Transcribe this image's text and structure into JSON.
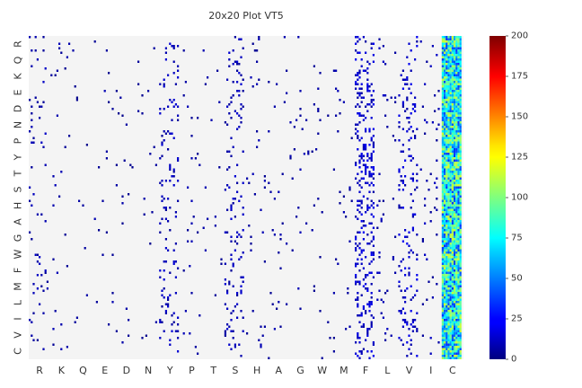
{
  "chart_data": {
    "type": "heatmap",
    "title": "20x20 Plot VT5",
    "x_labels": [
      "R",
      "K",
      "Q",
      "E",
      "D",
      "N",
      "Y",
      "P",
      "T",
      "S",
      "H",
      "A",
      "G",
      "W",
      "M",
      "F",
      "L",
      "V",
      "I",
      "C"
    ],
    "y_labels": [
      "R",
      "Q",
      "K",
      "E",
      "D",
      "N",
      "P",
      "Y",
      "T",
      "S",
      "H",
      "A",
      "G",
      "W",
      "F",
      "M",
      "L",
      "I",
      "V",
      "C"
    ],
    "colorbar": {
      "min": 0,
      "max": 200,
      "ticks": [
        0,
        25,
        50,
        75,
        100,
        125,
        150,
        175,
        200
      ],
      "colormap": "jet"
    },
    "background_color": "#f4f4f4",
    "empty_cell_meaning": "no data",
    "columns": [
      {
        "label": "R",
        "density": 0.04,
        "level": 0.05
      },
      {
        "label": "K",
        "density": 0.02,
        "level": 0.04
      },
      {
        "label": "Q",
        "density": 0.01,
        "level": 0.03
      },
      {
        "label": "E",
        "density": 0.02,
        "level": 0.04
      },
      {
        "label": "D",
        "density": 0.01,
        "level": 0.03
      },
      {
        "label": "N",
        "density": 0.01,
        "level": 0.03
      },
      {
        "label": "Y",
        "density": 0.09,
        "level": 0.06
      },
      {
        "label": "P",
        "density": 0.02,
        "level": 0.04
      },
      {
        "label": "T",
        "density": 0.02,
        "level": 0.04
      },
      {
        "label": "S",
        "density": 0.09,
        "level": 0.06
      },
      {
        "label": "H",
        "density": 0.02,
        "level": 0.04
      },
      {
        "label": "A",
        "density": 0.02,
        "level": 0.04
      },
      {
        "label": "G",
        "density": 0.02,
        "level": 0.04
      },
      {
        "label": "W",
        "density": 0.01,
        "level": 0.03
      },
      {
        "label": "M",
        "density": 0.02,
        "level": 0.04
      },
      {
        "label": "F",
        "density": 0.22,
        "level": 0.08
      },
      {
        "label": "L",
        "density": 0.03,
        "level": 0.05
      },
      {
        "label": "V",
        "density": 0.12,
        "level": 0.08
      },
      {
        "label": "I",
        "density": 0.03,
        "level": 0.05
      },
      {
        "label": "C",
        "density": 1.0,
        "level": 0.42
      }
    ]
  }
}
